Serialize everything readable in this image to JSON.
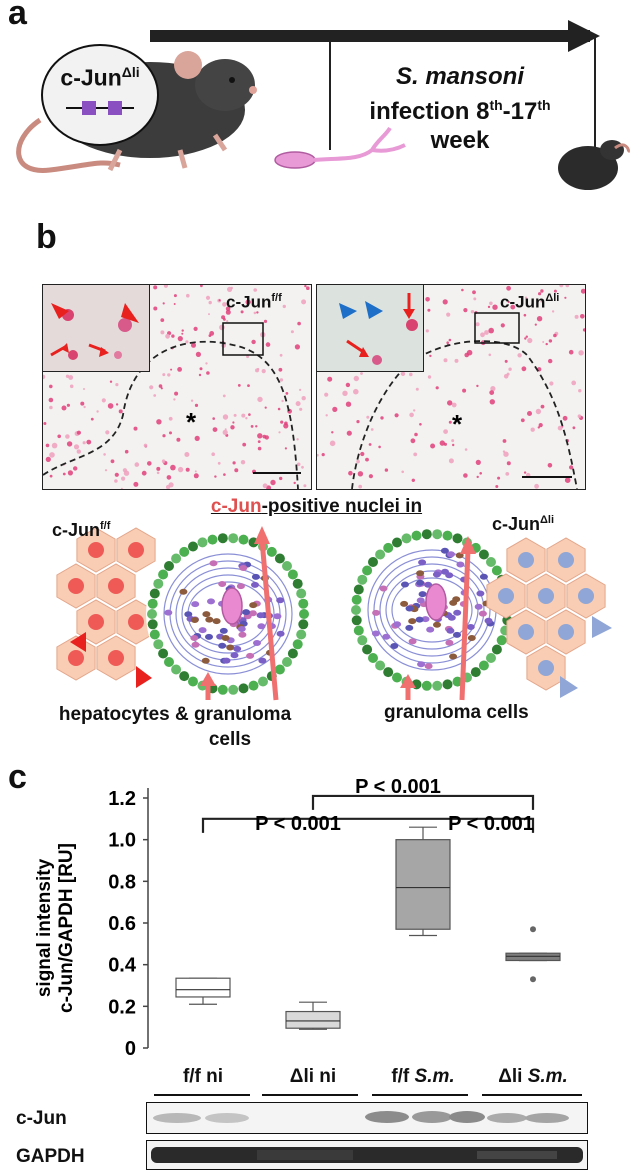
{
  "panel_a": {
    "letter": "a",
    "mouse_label_base": "c-Jun",
    "mouse_label_sup": "Δli",
    "infection_line1": "S. mansoni",
    "infection_line2_a": "infection 8",
    "infection_line2_sup1": "th",
    "infection_line2_b": "-17",
    "infection_line2_sup2": "th",
    "infection_line3": "week"
  },
  "panel_b": {
    "letter": "b",
    "left_label_base": "c-Jun",
    "left_label_sup": "f/f",
    "right_label_base": "c-Jun",
    "right_label_sup": "Δli",
    "title_red": "c-Jun",
    "title_rest": "-positive nuclei in",
    "left_cells_label_base": "c-Jun",
    "left_cells_label_sup": "f/f",
    "right_cells_label_base": "c-Jun",
    "right_cells_label_sup": "Δli",
    "left_caption_line1": "hepatocytes & granuloma",
    "left_caption_line2": "cells",
    "right_caption": "granuloma cells",
    "asterisk": "*"
  },
  "panel_c": {
    "letter": "c",
    "ylabel_line1": "signal intensity",
    "ylabel_line2": "c-Jun/GAPDH [RU]",
    "p_low": "P < 0.001",
    "p_top": "P < 0.001",
    "p_right": "P < 0.001",
    "lanes": [
      "f/f ni",
      "Δli ni",
      "f/f ",
      "Δli "
    ],
    "lanes_italic": [
      "",
      "",
      "S.m.",
      "S.m."
    ],
    "blot_label_1": "c-Jun",
    "blot_label_2": "GAPDH"
  },
  "chart_data": {
    "type": "box",
    "ylabel": "signal intensity c-Jun/GAPDH [RU]",
    "ylim": [
      0,
      1.2
    ],
    "yticks": [
      0,
      0.2,
      0.4,
      0.6,
      0.8,
      1.0,
      1.2
    ],
    "categories": [
      "f/f ni",
      "Δli ni",
      "f/f S.m.",
      "Δli S.m."
    ],
    "boxes": [
      {
        "name": "f/f ni",
        "min": 0.21,
        "q1": 0.245,
        "median": 0.28,
        "q3": 0.335,
        "max": 0.335,
        "outliers": [],
        "fill": "#ffffff"
      },
      {
        "name": "Δli ni",
        "min": 0.09,
        "q1": 0.095,
        "median": 0.13,
        "q3": 0.175,
        "max": 0.22,
        "outliers": [],
        "fill": "#d9d9d9"
      },
      {
        "name": "f/f S.m.",
        "min": 0.54,
        "q1": 0.57,
        "median": 0.77,
        "q3": 1.0,
        "max": 1.06,
        "outliers": [],
        "fill": "#a6a6a6"
      },
      {
        "name": "Δli S.m.",
        "min": 0.42,
        "q1": 0.42,
        "median": 0.44,
        "q3": 0.455,
        "max": 0.455,
        "outliers": [
          0.33,
          0.57
        ],
        "fill": "#7f7f7f"
      }
    ],
    "comparisons": [
      {
        "from": "f/f ni",
        "to": "f/f S.m.",
        "label": "P < 0.001"
      },
      {
        "from": "Δli ni",
        "to": "Δli S.m.",
        "label": "P < 0.001"
      },
      {
        "from": "f/f S.m.",
        "to": "Δli S.m.",
        "label": "P < 0.001"
      }
    ]
  },
  "colors": {
    "arrow_red": "#e8201e",
    "arrow_blue": "#1e6fc8",
    "hepatocyte_fill": "#f8cdb4",
    "nucleus_red": "#ef5a57",
    "nucleus_blue": "#8fa6d6",
    "accent_red_text": "#e05050"
  }
}
